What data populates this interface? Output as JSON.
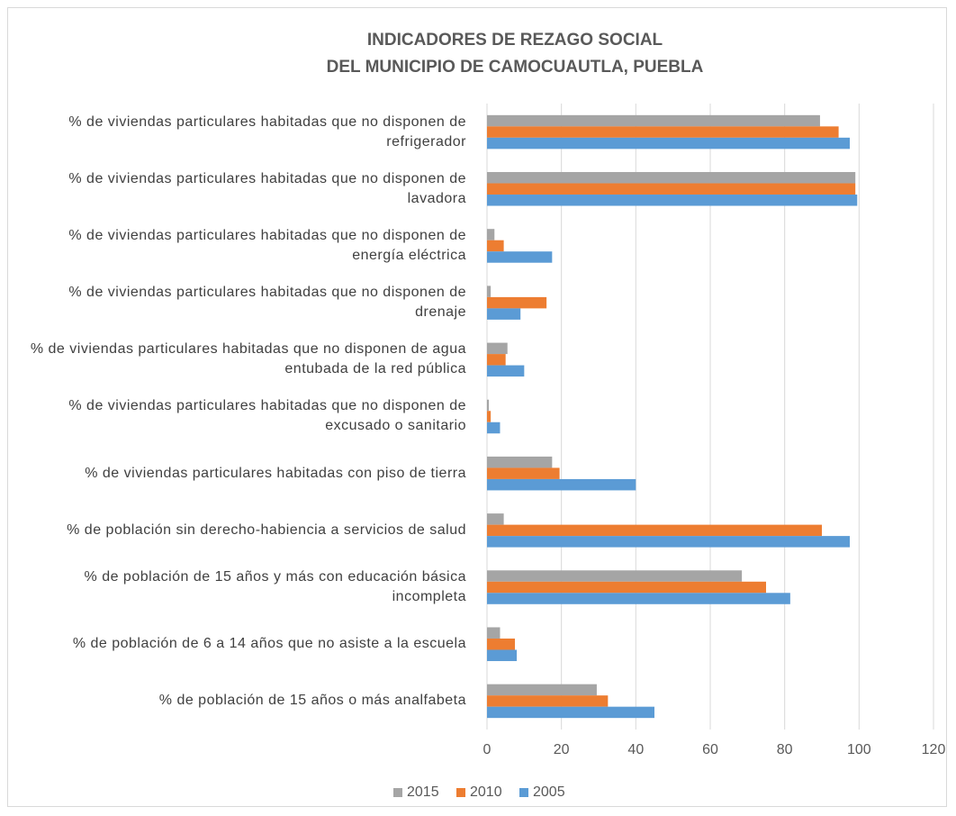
{
  "chart_data": {
    "type": "bar",
    "orientation": "horizontal",
    "title": [
      "INDICADORES DE REZAGO SOCIAL",
      "DEL MUNICIPIO DE CAMOCUAUTLA, PUEBLA"
    ],
    "categories": [
      "% de viviendas particulares habitadas que no disponen de refrigerador",
      "% de viviendas particulares habitadas que no disponen de lavadora",
      "% de viviendas particulares habitadas que no disponen de energía eléctrica",
      "% de viviendas particulares habitadas que no disponen de drenaje",
      "% de viviendas particulares habitadas que no disponen de agua entubada de la red pública",
      "% de viviendas particulares habitadas que no disponen de excusado o sanitario",
      "% de viviendas particulares habitadas con piso de tierra",
      "% de población sin derecho-habiencia a servicios de salud",
      "% de población de 15 años y más con educación básica incompleta",
      "% de población de 6 a 14 años que no asiste a la escuela",
      "% de población de 15 años o más analfabeta"
    ],
    "series": [
      {
        "name": "2015",
        "color": "#a5a5a5",
        "values": [
          89.5,
          99,
          2,
          1,
          5.5,
          0.5,
          17.5,
          4.5,
          68.5,
          3.5,
          29.5
        ]
      },
      {
        "name": "2010",
        "color": "#ed7d31",
        "values": [
          94.5,
          99,
          4.5,
          16,
          5,
          1,
          19.5,
          90,
          75,
          7.5,
          32.5
        ]
      },
      {
        "name": "2005",
        "color": "#5b9bd5",
        "values": [
          97.5,
          99.5,
          17.5,
          9,
          10,
          3.5,
          40,
          97.5,
          81.5,
          8,
          45
        ]
      }
    ],
    "xlim": [
      0,
      120
    ],
    "xticks": [
      0,
      20,
      40,
      60,
      80,
      100,
      120
    ],
    "grid": true,
    "legend": "bottom"
  }
}
